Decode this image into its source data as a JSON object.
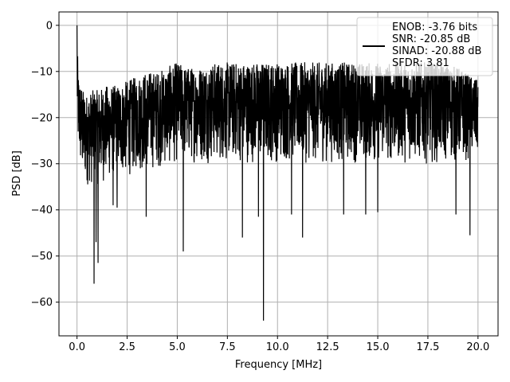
{
  "chart_data": {
    "type": "line",
    "title": "",
    "xlabel": "Frequency [MHz]",
    "ylabel": "PSD [dB]",
    "xlim": [
      -0.9,
      21.0
    ],
    "ylim": [
      -67.3,
      2.9
    ],
    "xticks": [
      0.0,
      2.5,
      5.0,
      7.5,
      10.0,
      12.5,
      15.0,
      17.5,
      20.0
    ],
    "xtick_labels": [
      "0.0",
      "2.5",
      "5.0",
      "7.5",
      "10.0",
      "12.5",
      "15.0",
      "17.5",
      "20.0"
    ],
    "yticks": [
      0,
      -10,
      -20,
      -30,
      -40,
      -50,
      -60
    ],
    "ytick_labels": [
      "0",
      "−10",
      "−20",
      "−30",
      "−40",
      "−50",
      "−60"
    ],
    "grid": true,
    "legend_position": "top-right",
    "series": [
      {
        "color": "#000000",
        "envelope": {
          "x": [
            0.0,
            0.05,
            0.15,
            0.3,
            0.5,
            0.8,
            1.0,
            1.5,
            2.0,
            2.5,
            3.0,
            3.5,
            4.0,
            4.5,
            5.0,
            5.5,
            6.0,
            7.0,
            8.0,
            9.0,
            10.0,
            11.0,
            12.0,
            13.0,
            14.0,
            15.0,
            16.0,
            17.0,
            18.0,
            19.0,
            20.0
          ],
          "upper": [
            0,
            -10,
            -12,
            -14,
            -15,
            -14,
            -14,
            -13,
            -13,
            -12,
            -11,
            -10,
            -10,
            -9,
            -8,
            -9,
            -9,
            -8,
            -8,
            -8,
            -8,
            -8,
            -8,
            -8,
            -8,
            -8,
            -8,
            -8,
            -8,
            -9,
            -12
          ],
          "lower": [
            -23,
            -28,
            -32,
            -35,
            -35,
            -35,
            -35,
            -34,
            -33,
            -33,
            -32,
            -32,
            -31,
            -31,
            -30,
            -30,
            -30,
            -30,
            -30,
            -30,
            -30,
            -30,
            -30,
            -30,
            -30,
            -30,
            -30,
            -30,
            -30,
            -30,
            -29
          ]
        },
        "dips": [
          {
            "x": 0.85,
            "y": -56
          },
          {
            "x": 1.05,
            "y": -51.5
          },
          {
            "x": 0.95,
            "y": -47
          },
          {
            "x": 1.8,
            "y": -39
          },
          {
            "x": 2.0,
            "y": -39.5
          },
          {
            "x": 3.45,
            "y": -41.5
          },
          {
            "x": 5.3,
            "y": -49
          },
          {
            "x": 8.25,
            "y": -46
          },
          {
            "x": 9.3,
            "y": -64
          },
          {
            "x": 9.05,
            "y": -41.5
          },
          {
            "x": 10.7,
            "y": -41
          },
          {
            "x": 11.25,
            "y": -46
          },
          {
            "x": 13.3,
            "y": -41
          },
          {
            "x": 14.4,
            "y": -41
          },
          {
            "x": 15.0,
            "y": -40.5
          },
          {
            "x": 18.9,
            "y": -41
          },
          {
            "x": 19.6,
            "y": -45.5
          }
        ]
      }
    ],
    "legend": {
      "entries": [
        "ENOB: -3.76 bits",
        "SNR: -20.85 dB",
        "SINAD: -20.88 dB",
        "SFDR: 3.81"
      ]
    }
  }
}
